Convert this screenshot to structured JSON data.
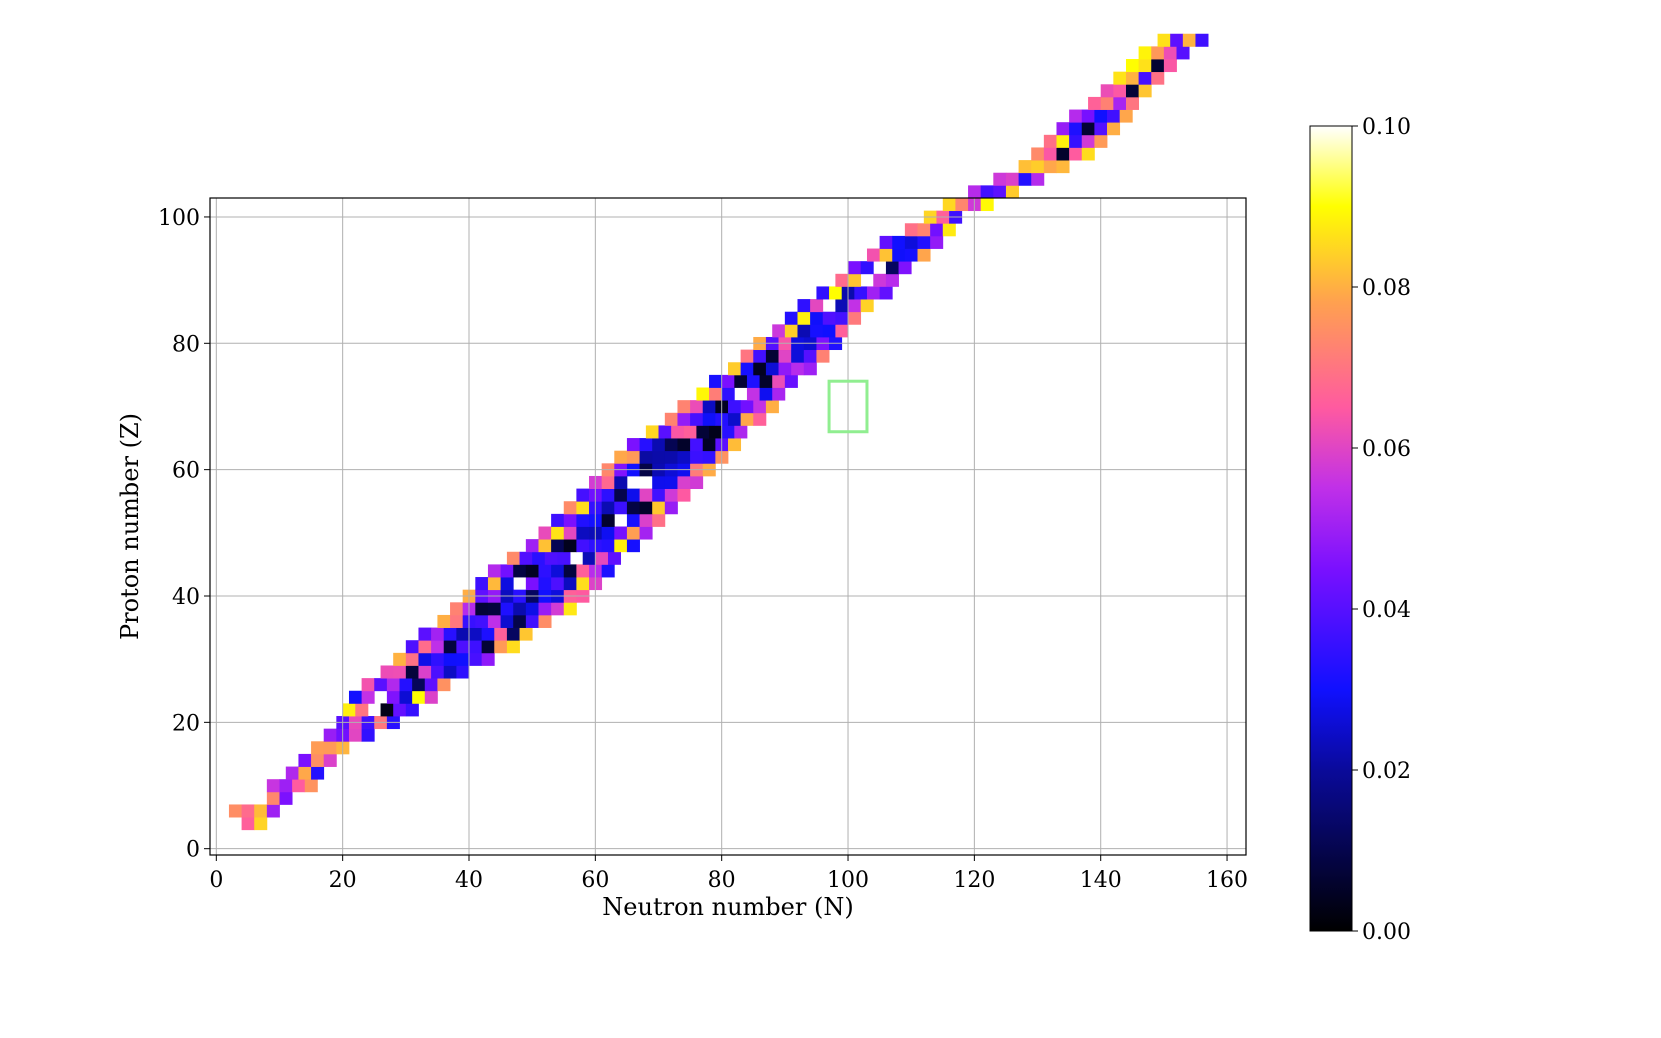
{
  "chart_data": {
    "type": "heatmap",
    "title": "",
    "xlabel": "Neutron number (N)",
    "ylabel": "Proton number (Z)",
    "xlim": [
      -1,
      163
    ],
    "ylim": [
      -1,
      103
    ],
    "xticks": [
      0,
      20,
      40,
      60,
      80,
      100,
      120,
      140,
      160
    ],
    "yticks": [
      0,
      20,
      40,
      60,
      80,
      100
    ],
    "grid": true,
    "colormap": "gnuplot2",
    "colormap_stops": [
      {
        "v": 0.0,
        "color": "#000000"
      },
      {
        "v": 0.2,
        "color": "#0a0a9a"
      },
      {
        "v": 0.3,
        "color": "#1010ff"
      },
      {
        "v": 0.45,
        "color": "#7a10ff"
      },
      {
        "v": 0.55,
        "color": "#c030e8"
      },
      {
        "v": 0.65,
        "color": "#ff5aa0"
      },
      {
        "v": 0.78,
        "color": "#ffa050"
      },
      {
        "v": 0.9,
        "color": "#ffff00"
      },
      {
        "v": 1.0,
        "color": "#ffffff"
      }
    ],
    "colorbar": {
      "min": 0.0,
      "max": 0.1,
      "ticks": [
        "0.00",
        "0.02",
        "0.04",
        "0.06",
        "0.08",
        "0.10"
      ]
    },
    "highlight": {
      "N": [
        98,
        102
      ],
      "Z": [
        67,
        73
      ],
      "color": "#90ee90"
    },
    "value_range": [
      0.0,
      0.1
    ],
    "band": [
      [
        4,
        5,
        7
      ],
      [
        6,
        3,
        9
      ],
      [
        8,
        9,
        11
      ],
      [
        10,
        9,
        15
      ],
      [
        12,
        12,
        16
      ],
      [
        14,
        14,
        18
      ],
      [
        16,
        16,
        20
      ],
      [
        18,
        18,
        24
      ],
      [
        20,
        20,
        28
      ],
      [
        22,
        21,
        32
      ],
      [
        24,
        22,
        34
      ],
      [
        26,
        24,
        36
      ],
      [
        28,
        27,
        40
      ],
      [
        30,
        29,
        44
      ],
      [
        32,
        31,
        47
      ],
      [
        34,
        33,
        50
      ],
      [
        36,
        36,
        53
      ],
      [
        38,
        38,
        56
      ],
      [
        40,
        40,
        58
      ],
      [
        42,
        42,
        60
      ],
      [
        44,
        44,
        62
      ],
      [
        46,
        47,
        64
      ],
      [
        48,
        50,
        66
      ],
      [
        50,
        52,
        68
      ],
      [
        52,
        54,
        70
      ],
      [
        54,
        56,
        72
      ],
      [
        56,
        58,
        74
      ],
      [
        58,
        60,
        76
      ],
      [
        60,
        62,
        78
      ],
      [
        62,
        64,
        80
      ],
      [
        64,
        66,
        82
      ],
      [
        66,
        69,
        84
      ],
      [
        68,
        72,
        86
      ],
      [
        70,
        74,
        88
      ],
      [
        72,
        77,
        90
      ],
      [
        74,
        79,
        92
      ],
      [
        76,
        82,
        94
      ],
      [
        78,
        84,
        96
      ],
      [
        80,
        86,
        98
      ],
      [
        82,
        89,
        100
      ],
      [
        84,
        91,
        102
      ],
      [
        86,
        93,
        104
      ],
      [
        88,
        96,
        106
      ],
      [
        90,
        99,
        108
      ],
      [
        92,
        101,
        110
      ],
      [
        94,
        104,
        112
      ],
      [
        96,
        106,
        114
      ],
      [
        98,
        110,
        116
      ],
      [
        100,
        113,
        118
      ],
      [
        102,
        116,
        122
      ],
      [
        104,
        120,
        126
      ],
      [
        106,
        124,
        130
      ],
      [
        108,
        128,
        134
      ],
      [
        110,
        130,
        138
      ],
      [
        112,
        132,
        140
      ],
      [
        114,
        134,
        142
      ],
      [
        116,
        136,
        144
      ],
      [
        118,
        139,
        146
      ],
      [
        120,
        141,
        148
      ],
      [
        122,
        143,
        150
      ],
      [
        124,
        145,
        152
      ],
      [
        126,
        147,
        154
      ],
      [
        128,
        150,
        156
      ]
    ]
  }
}
